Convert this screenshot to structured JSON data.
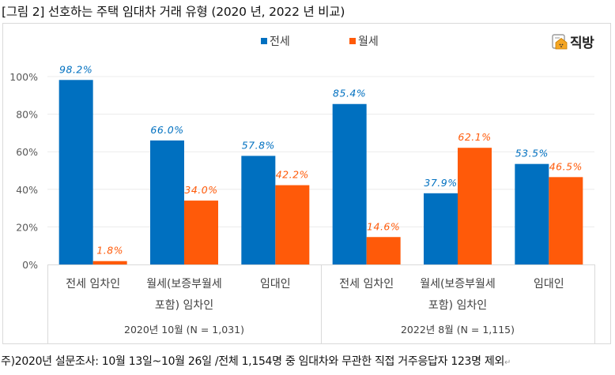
{
  "title": "[그림 2] 선호하는 주택 임대차 거래 유형 (2020 년, 2022 년 비교)",
  "footnote": "주)2020년 설문조사: 10월 13일~10월 26일 /전체 1,154명 중 임대차와 무관한 직접 거주응답자 123명 제외",
  "logo": {
    "text": "직방",
    "icon": "house-logo-icon"
  },
  "colors": {
    "jeonse": "#0070c0",
    "wolse": "#ff5a09",
    "grid": "#ececec",
    "axis": "#d9d9d9",
    "tick": "#595959"
  },
  "chart_data": {
    "type": "bar",
    "title": "",
    "xlabel": "",
    "ylabel": "",
    "ylim": [
      0,
      100
    ],
    "yticks": [
      "0%",
      "20%",
      "40%",
      "60%",
      "80%",
      "100%"
    ],
    "grid": true,
    "legend": {
      "position": "top-center",
      "entries": [
        "전세",
        "월세"
      ]
    },
    "groups": [
      {
        "label": "2020년 10월 (N = 1,031)",
        "categories": [
          "전세 임차인",
          "월세(보증부월세\n포함) 임차인",
          "임대인"
        ]
      },
      {
        "label": "2022년 8월 (N = 1,115)",
        "categories": [
          "전세 임차인",
          "월세(보증부월세\n포함) 임차인",
          "임대인"
        ]
      }
    ],
    "categories": [
      "전세 임차인",
      "월세(보증부월세 포함) 임차인",
      "임대인",
      "전세 임차인",
      "월세(보증부월세 포함) 임차인",
      "임대인"
    ],
    "category_lines": [
      [
        "전세 임차인"
      ],
      [
        "월세(보증부월세",
        "포함) 임차인"
      ],
      [
        "임대인"
      ],
      [
        "전세 임차인"
      ],
      [
        "월세(보증부월세",
        "포함) 임차인"
      ],
      [
        "임대인"
      ]
    ],
    "series": [
      {
        "name": "전세",
        "values": [
          98.2,
          66.0,
          57.8,
          85.4,
          37.9,
          53.5
        ],
        "labels": [
          "98.2%",
          "66.0%",
          "57.8%",
          "85.4%",
          "37.9%",
          "53.5%"
        ]
      },
      {
        "name": "월세",
        "values": [
          1.8,
          34.0,
          42.2,
          14.6,
          62.1,
          46.5
        ],
        "labels": [
          "1.8%",
          "34.0%",
          "42.2%",
          "14.6%",
          "62.1%",
          "46.5%"
        ]
      }
    ]
  }
}
